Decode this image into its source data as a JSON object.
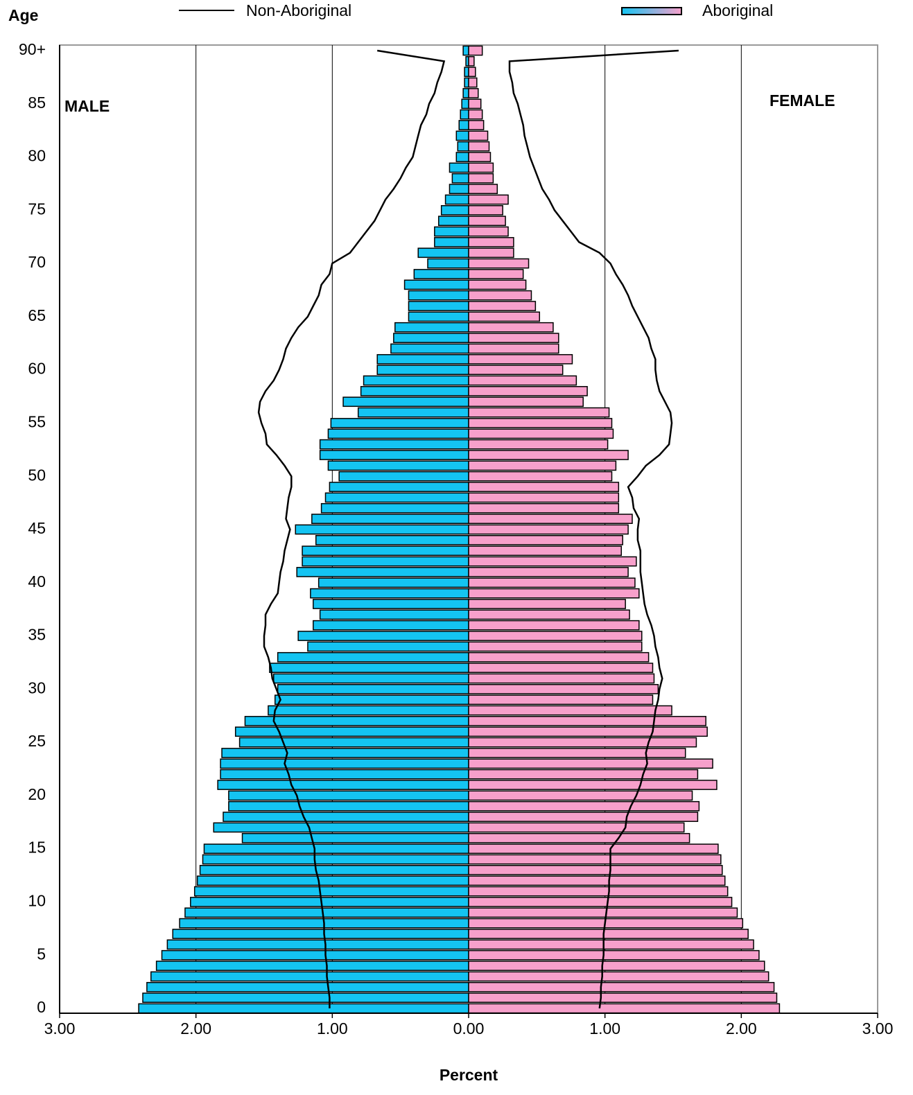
{
  "chart_data": {
    "type": "pyramid",
    "y_label": "Age",
    "x_label": "Percent",
    "annotations": [
      "MALE",
      "FEMALE"
    ],
    "categories": [
      0,
      null,
      null,
      null,
      null,
      5,
      null,
      null,
      null,
      null,
      10,
      null,
      null,
      null,
      null,
      15,
      null,
      null,
      null,
      null,
      20,
      null,
      null,
      null,
      null,
      25,
      null,
      null,
      null,
      null,
      30,
      null,
      null,
      null,
      null,
      35,
      null,
      null,
      null,
      null,
      40,
      null,
      null,
      null,
      null,
      45,
      null,
      null,
      null,
      null,
      50,
      null,
      null,
      null,
      null,
      55,
      null,
      null,
      null,
      null,
      60,
      null,
      null,
      null,
      null,
      65,
      null,
      null,
      null,
      null,
      70,
      null,
      null,
      null,
      null,
      75,
      null,
      null,
      null,
      null,
      80,
      null,
      null,
      null,
      null,
      85,
      null,
      null,
      null,
      null,
      "90+"
    ],
    "xlim": [
      -3,
      3
    ],
    "xticks": [
      {
        "value": -3,
        "label": "3.00"
      },
      {
        "value": -2,
        "label": "2.00"
      },
      {
        "value": -1,
        "label": "1.00"
      },
      {
        "value": 0,
        "label": "0.00"
      },
      {
        "value": 1,
        "label": "1.00"
      },
      {
        "value": 2,
        "label": "2.00"
      },
      {
        "value": 3,
        "label": "3.00"
      }
    ],
    "grid": true,
    "series": [
      {
        "name": "Aboriginal",
        "type": "bar",
        "male_color": "#14c4f2",
        "female_color": "#f7a0cb",
        "male": [
          2.42,
          2.39,
          2.36,
          2.33,
          2.29,
          2.25,
          2.21,
          2.17,
          2.12,
          2.08,
          2.04,
          2.01,
          1.99,
          1.97,
          1.95,
          1.94,
          1.66,
          1.87,
          1.8,
          1.76,
          1.76,
          1.84,
          1.82,
          1.82,
          1.81,
          1.68,
          1.71,
          1.64,
          1.47,
          1.42,
          1.4,
          1.43,
          1.46,
          1.4,
          1.18,
          1.25,
          1.14,
          1.09,
          1.14,
          1.16,
          1.1,
          1.26,
          1.22,
          1.22,
          1.12,
          1.27,
          1.15,
          1.08,
          1.05,
          1.02,
          0.95,
          1.03,
          1.09,
          1.09,
          1.03,
          1.01,
          0.81,
          0.92,
          0.79,
          0.77,
          0.67,
          0.67,
          0.57,
          0.55,
          0.54,
          0.44,
          0.44,
          0.44,
          0.47,
          0.4,
          0.3,
          0.37,
          0.25,
          0.25,
          0.22,
          0.2,
          0.17,
          0.14,
          0.12,
          0.14,
          0.09,
          0.08,
          0.09,
          0.07,
          0.06,
          0.05,
          0.04,
          0.03,
          0.03,
          0.02,
          0.04
        ],
        "female": [
          2.28,
          2.26,
          2.24,
          2.2,
          2.17,
          2.13,
          2.09,
          2.05,
          2.01,
          1.97,
          1.93,
          1.9,
          1.88,
          1.86,
          1.85,
          1.83,
          1.62,
          1.58,
          1.68,
          1.69,
          1.64,
          1.82,
          1.68,
          1.79,
          1.59,
          1.67,
          1.75,
          1.74,
          1.49,
          1.35,
          1.39,
          1.36,
          1.35,
          1.32,
          1.27,
          1.27,
          1.25,
          1.18,
          1.15,
          1.25,
          1.22,
          1.17,
          1.23,
          1.12,
          1.13,
          1.17,
          1.2,
          1.1,
          1.1,
          1.1,
          1.05,
          1.08,
          1.17,
          1.02,
          1.06,
          1.05,
          1.03,
          0.84,
          0.87,
          0.79,
          0.69,
          0.76,
          0.66,
          0.66,
          0.62,
          0.52,
          0.49,
          0.46,
          0.42,
          0.4,
          0.44,
          0.33,
          0.33,
          0.29,
          0.27,
          0.25,
          0.29,
          0.21,
          0.18,
          0.18,
          0.16,
          0.15,
          0.14,
          0.11,
          0.1,
          0.09,
          0.07,
          0.06,
          0.05,
          0.04,
          0.1
        ]
      },
      {
        "name": "Non-Aboriginal",
        "type": "line",
        "color": "#000000",
        "male": [
          1.02,
          1.02,
          1.03,
          1.04,
          1.04,
          1.05,
          1.05,
          1.06,
          1.06,
          1.07,
          1.08,
          1.09,
          1.1,
          1.12,
          1.13,
          1.13,
          1.15,
          1.17,
          1.21,
          1.24,
          1.26,
          1.3,
          1.32,
          1.35,
          1.33,
          1.36,
          1.39,
          1.43,
          1.42,
          1.38,
          1.41,
          1.44,
          1.45,
          1.47,
          1.5,
          1.5,
          1.49,
          1.49,
          1.45,
          1.4,
          1.39,
          1.38,
          1.36,
          1.35,
          1.33,
          1.31,
          1.34,
          1.33,
          1.32,
          1.3,
          1.3,
          1.35,
          1.41,
          1.48,
          1.49,
          1.52,
          1.54,
          1.53,
          1.49,
          1.43,
          1.39,
          1.36,
          1.34,
          1.3,
          1.25,
          1.18,
          1.14,
          1.1,
          1.08,
          1.02,
          1.0,
          0.87,
          0.81,
          0.75,
          0.69,
          0.65,
          0.61,
          0.55,
          0.5,
          0.46,
          0.41,
          0.39,
          0.37,
          0.35,
          0.31,
          0.29,
          0.25,
          0.23,
          0.2,
          0.18,
          0.67
        ],
        "female": [
          0.96,
          0.97,
          0.97,
          0.98,
          0.98,
          0.99,
          0.99,
          0.99,
          1.0,
          1.01,
          1.02,
          1.03,
          1.03,
          1.04,
          1.04,
          1.04,
          1.1,
          1.15,
          1.16,
          1.19,
          1.23,
          1.26,
          1.28,
          1.31,
          1.3,
          1.32,
          1.35,
          1.36,
          1.37,
          1.39,
          1.4,
          1.42,
          1.4,
          1.39,
          1.37,
          1.36,
          1.34,
          1.31,
          1.29,
          1.28,
          1.27,
          1.26,
          1.26,
          1.26,
          1.24,
          1.24,
          1.25,
          1.21,
          1.2,
          1.17,
          1.24,
          1.3,
          1.4,
          1.47,
          1.48,
          1.49,
          1.48,
          1.44,
          1.4,
          1.38,
          1.37,
          1.37,
          1.34,
          1.32,
          1.28,
          1.24,
          1.2,
          1.17,
          1.13,
          1.08,
          1.04,
          0.96,
          0.81,
          0.75,
          0.69,
          0.63,
          0.59,
          0.54,
          0.51,
          0.48,
          0.45,
          0.43,
          0.41,
          0.4,
          0.38,
          0.36,
          0.33,
          0.32,
          0.3,
          0.3,
          1.54
        ]
      }
    ]
  }
}
